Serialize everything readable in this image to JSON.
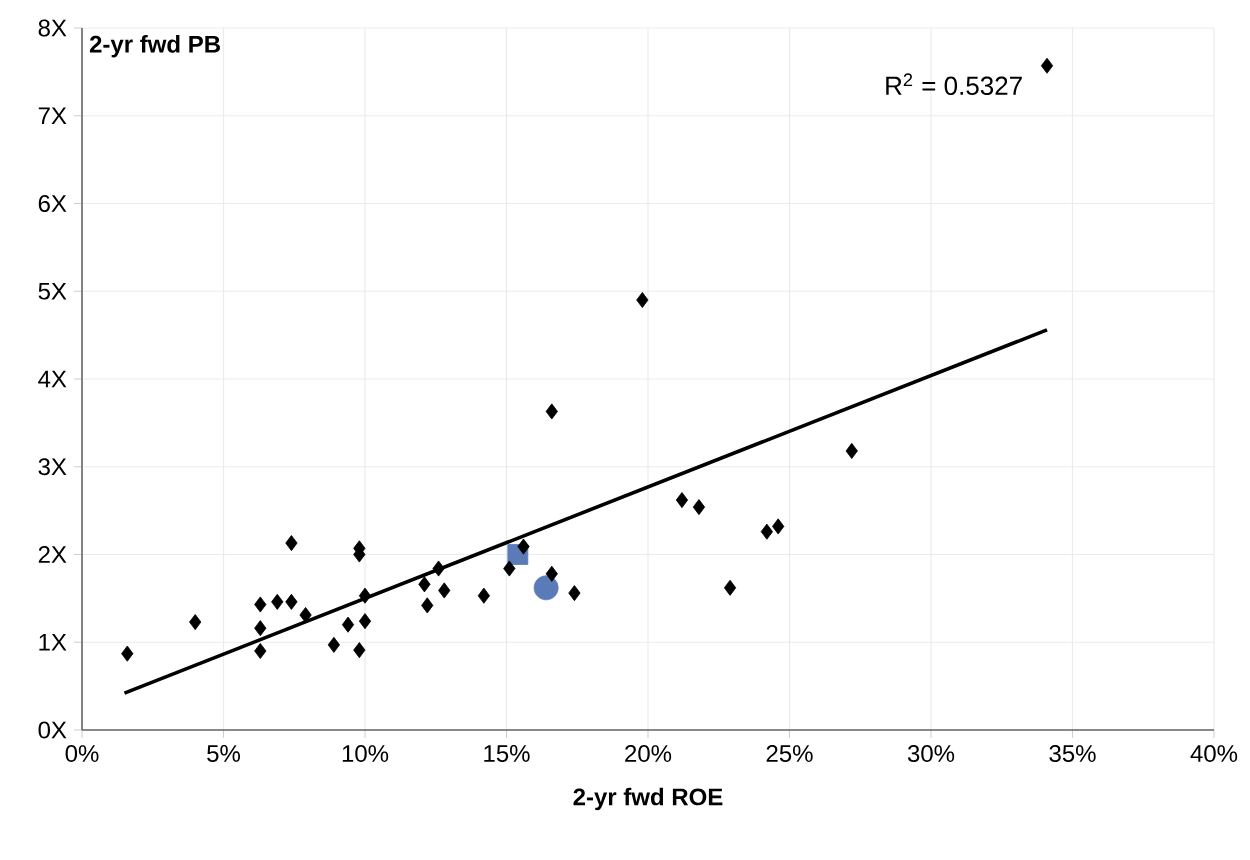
{
  "chart_data": {
    "type": "scatter",
    "ylabel": "2-yr fwd PB",
    "xlabel": "2-yr fwd ROE",
    "annotations": [
      "R$^{2}$ = 0.5327"
    ],
    "xlim": [
      0,
      40
    ],
    "ylim": [
      0,
      8
    ],
    "xticks": [
      {
        "value": 0,
        "label": "0%"
      },
      {
        "value": 5,
        "label": "5%"
      },
      {
        "value": 10,
        "label": "10%"
      },
      {
        "value": 15,
        "label": "15%"
      },
      {
        "value": 20,
        "label": "20%"
      },
      {
        "value": 25,
        "label": "25%"
      },
      {
        "value": 30,
        "label": "30%"
      },
      {
        "value": 35,
        "label": "35%"
      },
      {
        "value": 40,
        "label": "40%"
      }
    ],
    "yticks": [
      {
        "value": 0,
        "label": "0X"
      },
      {
        "value": 1,
        "label": "1X"
      },
      {
        "value": 2,
        "label": "2X"
      },
      {
        "value": 3,
        "label": "3X"
      },
      {
        "value": 4,
        "label": "4X"
      },
      {
        "value": 5,
        "label": "5X"
      },
      {
        "value": 6,
        "label": "6X"
      },
      {
        "value": 7,
        "label": "7X"
      },
      {
        "value": 8,
        "label": "8X"
      }
    ],
    "grid": true,
    "series": [
      {
        "marker": "diamond",
        "color": "#000000",
        "x": [
          1.6,
          4.0,
          6.3,
          6.3,
          6.3,
          6.9,
          7.4,
          7.4,
          7.9,
          8.9,
          9.4,
          9.8,
          9.8,
          9.8,
          10.0,
          10.0,
          12.1,
          12.2,
          12.6,
          12.8,
          14.2,
          15.1,
          15.6,
          16.6,
          16.6,
          17.4,
          19.8,
          21.2,
          21.8,
          22.9,
          24.2,
          24.6,
          27.2,
          34.1
        ],
        "values": [
          0.87,
          1.23,
          1.43,
          1.16,
          0.9,
          1.46,
          2.13,
          1.46,
          1.31,
          0.97,
          1.2,
          2.0,
          2.07,
          0.91,
          1.24,
          1.53,
          1.66,
          1.42,
          1.84,
          1.59,
          1.53,
          1.84,
          2.09,
          3.63,
          1.78,
          1.56,
          4.9,
          2.62,
          2.54,
          1.62,
          2.26,
          2.32,
          3.18,
          7.57
        ]
      },
      {
        "marker": "square",
        "color": "#5b7bb8",
        "x": [
          15.4
        ],
        "values": [
          2.0
        ]
      },
      {
        "marker": "circle",
        "color": "#5b7bb8",
        "x": [
          16.4
        ],
        "values": [
          1.62
        ]
      },
      {
        "type": "line",
        "marker": "none",
        "line_style": "solid",
        "color": "#000000",
        "x": [
          1.5,
          34.1
        ],
        "values": [
          0.42,
          4.56
        ]
      }
    ]
  }
}
